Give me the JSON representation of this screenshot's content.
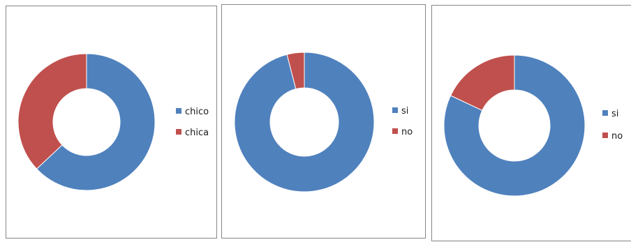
{
  "colors": {
    "blue": "#4f81bd",
    "red": "#c0504d"
  },
  "chart_data": [
    {
      "type": "pie",
      "donut": true,
      "title": "",
      "legend_position": "right",
      "categories": [
        "chico",
        "chica"
      ],
      "values": [
        63,
        37
      ],
      "colors": [
        "#4f81bd",
        "#c0504d"
      ]
    },
    {
      "type": "pie",
      "donut": true,
      "title": "",
      "legend_position": "right",
      "categories": [
        "si",
        "no"
      ],
      "values": [
        96,
        4
      ],
      "colors": [
        "#4f81bd",
        "#c0504d"
      ]
    },
    {
      "type": "pie",
      "donut": true,
      "title": "",
      "legend_position": "right",
      "categories": [
        "si",
        "no"
      ],
      "values": [
        82,
        18
      ],
      "colors": [
        "#4f81bd",
        "#c0504d"
      ]
    }
  ]
}
